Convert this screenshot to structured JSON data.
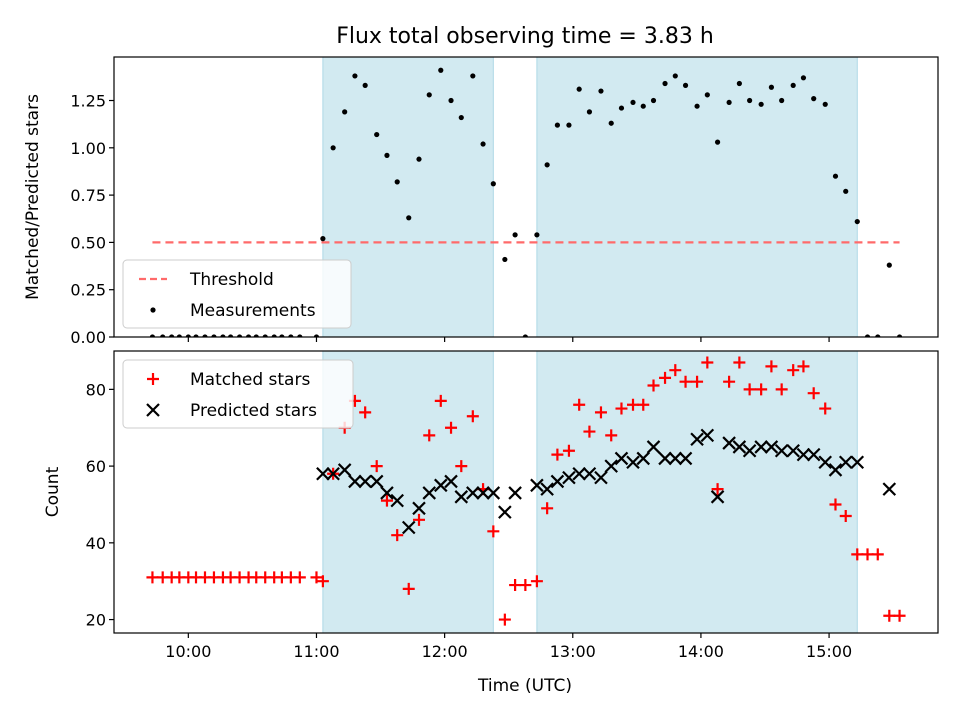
{
  "chart_data": {
    "title": "Flux total observing time = 3.83 h",
    "xlabel": "Time (UTC)",
    "x_unit": "hours UTC",
    "xlim": [
      9.42,
      15.85
    ],
    "xticks": [
      {
        "label": "10:00",
        "value": 10
      },
      {
        "label": "11:00",
        "value": 11
      },
      {
        "label": "12:00",
        "value": 12
      },
      {
        "label": "13:00",
        "value": 13
      },
      {
        "label": "14:00",
        "value": 14
      },
      {
        "label": "15:00",
        "value": 15
      }
    ],
    "shaded_intervals": [
      [
        11.05,
        12.38
      ],
      [
        12.72,
        15.22
      ]
    ],
    "shade_color": "#add8e6",
    "panels": [
      {
        "type": "scatter",
        "ylabel": "Matched/Predicted stars",
        "ylim": [
          0,
          1.48
        ],
        "yticks": [
          "0.00",
          "0.25",
          "0.50",
          "0.75",
          "1.00",
          "1.25"
        ],
        "legend_position": "lower-left",
        "series": [
          {
            "name": "Threshold",
            "kind": "dashed-line",
            "color": "#ff6a6a",
            "x": [
              9.72,
              15.55
            ],
            "y": [
              0.5,
              0.5
            ]
          },
          {
            "name": "Measurements",
            "kind": "dot",
            "color": "#000000",
            "x": [
              9.72,
              9.8,
              9.87,
              9.93,
              10.0,
              10.06,
              10.13,
              10.2,
              10.27,
              10.33,
              10.4,
              10.47,
              10.53,
              10.6,
              10.67,
              10.73,
              10.8,
              10.87,
              11.0,
              11.05,
              11.13,
              11.22,
              11.3,
              11.38,
              11.47,
              11.55,
              11.63,
              11.72,
              11.8,
              11.88,
              11.97,
              12.05,
              12.13,
              12.22,
              12.3,
              12.38,
              12.47,
              12.55,
              12.63,
              12.72,
              12.8,
              12.88,
              12.97,
              13.05,
              13.13,
              13.22,
              13.3,
              13.38,
              13.47,
              13.55,
              13.63,
              13.72,
              13.8,
              13.88,
              13.97,
              14.05,
              14.13,
              14.22,
              14.3,
              14.38,
              14.47,
              14.55,
              14.63,
              14.72,
              14.8,
              14.88,
              14.97,
              15.05,
              15.13,
              15.22,
              15.3,
              15.38,
              15.47,
              15.55
            ],
            "y": [
              0,
              0,
              0,
              0,
              0,
              0,
              0,
              0,
              0,
              0,
              0,
              0,
              0,
              0,
              0,
              0,
              0,
              0,
              0,
              0.52,
              1.0,
              1.19,
              1.38,
              1.33,
              1.07,
              0.96,
              0.82,
              0.63,
              0.94,
              1.28,
              1.41,
              1.25,
              1.16,
              1.38,
              1.02,
              0.81,
              0.41,
              0.54,
              0,
              0.54,
              0.91,
              1.12,
              1.12,
              1.31,
              1.19,
              1.3,
              1.13,
              1.21,
              1.24,
              1.22,
              1.25,
              1.34,
              1.38,
              1.33,
              1.22,
              1.28,
              1.03,
              1.24,
              1.34,
              1.25,
              1.23,
              1.32,
              1.25,
              1.33,
              1.37,
              1.26,
              1.23,
              0.85,
              0.77,
              0.61,
              0,
              0,
              0.38,
              0
            ]
          }
        ]
      },
      {
        "type": "scatter",
        "ylabel": "Count",
        "ylim": [
          16.5,
          90
        ],
        "yticks": [
          "20",
          "40",
          "60",
          "80"
        ],
        "legend_position": "upper-left",
        "series": [
          {
            "name": "Matched stars",
            "kind": "plus",
            "color": "#ff0000",
            "x": [
              9.72,
              9.8,
              9.87,
              9.93,
              10.0,
              10.06,
              10.13,
              10.2,
              10.27,
              10.33,
              10.4,
              10.47,
              10.53,
              10.6,
              10.67,
              10.73,
              10.8,
              10.87,
              11.0,
              11.05,
              11.13,
              11.22,
              11.3,
              11.38,
              11.47,
              11.55,
              11.63,
              11.72,
              11.8,
              11.88,
              11.97,
              12.05,
              12.13,
              12.22,
              12.3,
              12.38,
              12.47,
              12.55,
              12.63,
              12.72,
              12.8,
              12.88,
              12.97,
              13.05,
              13.13,
              13.22,
              13.3,
              13.38,
              13.47,
              13.55,
              13.63,
              13.72,
              13.8,
              13.88,
              13.97,
              14.05,
              14.13,
              14.22,
              14.3,
              14.38,
              14.47,
              14.55,
              14.63,
              14.72,
              14.8,
              14.88,
              14.97,
              15.05,
              15.13,
              15.22,
              15.3,
              15.38,
              15.47,
              15.55
            ],
            "y": [
              31,
              31,
              31,
              31,
              31,
              31,
              31,
              31,
              31,
              31,
              31,
              31,
              31,
              31,
              31,
              31,
              31,
              31,
              31,
              30,
              58,
              70,
              77,
              74,
              60,
              51,
              42,
              28,
              46,
              68,
              77,
              70,
              60,
              73,
              54,
              43,
              20,
              29,
              29,
              30,
              49,
              63,
              64,
              76,
              69,
              74,
              68,
              75,
              76,
              76,
              81,
              83,
              85,
              82,
              82,
              87,
              54,
              82,
              87,
              80,
              80,
              86,
              80,
              85,
              86,
              79,
              75,
              50,
              47,
              37,
              37,
              37,
              21,
              21
            ]
          },
          {
            "name": "Predicted stars",
            "kind": "x",
            "color": "#000000",
            "x": [
              11.05,
              11.13,
              11.22,
              11.3,
              11.38,
              11.47,
              11.55,
              11.63,
              11.72,
              11.8,
              11.88,
              11.97,
              12.05,
              12.13,
              12.22,
              12.3,
              12.38,
              12.47,
              12.55,
              12.72,
              12.8,
              12.88,
              12.97,
              13.05,
              13.13,
              13.22,
              13.3,
              13.38,
              13.47,
              13.55,
              13.63,
              13.72,
              13.8,
              13.88,
              13.97,
              14.05,
              14.13,
              14.22,
              14.3,
              14.38,
              14.47,
              14.55,
              14.63,
              14.72,
              14.8,
              14.88,
              14.97,
              15.05,
              15.13,
              15.22,
              15.47
            ],
            "y": [
              58,
              58,
              59,
              56,
              56,
              56,
              53,
              51,
              44,
              49,
              53,
              55,
              56,
              52,
              53,
              53,
              53,
              48,
              53,
              55,
              54,
              56,
              57,
              58,
              58,
              57,
              60,
              62,
              61,
              62,
              65,
              62,
              62,
              62,
              67,
              68,
              52,
              66,
              65,
              64,
              65,
              65,
              64,
              64,
              63,
              63,
              61,
              59,
              61,
              61,
              54
            ]
          }
        ]
      }
    ]
  }
}
